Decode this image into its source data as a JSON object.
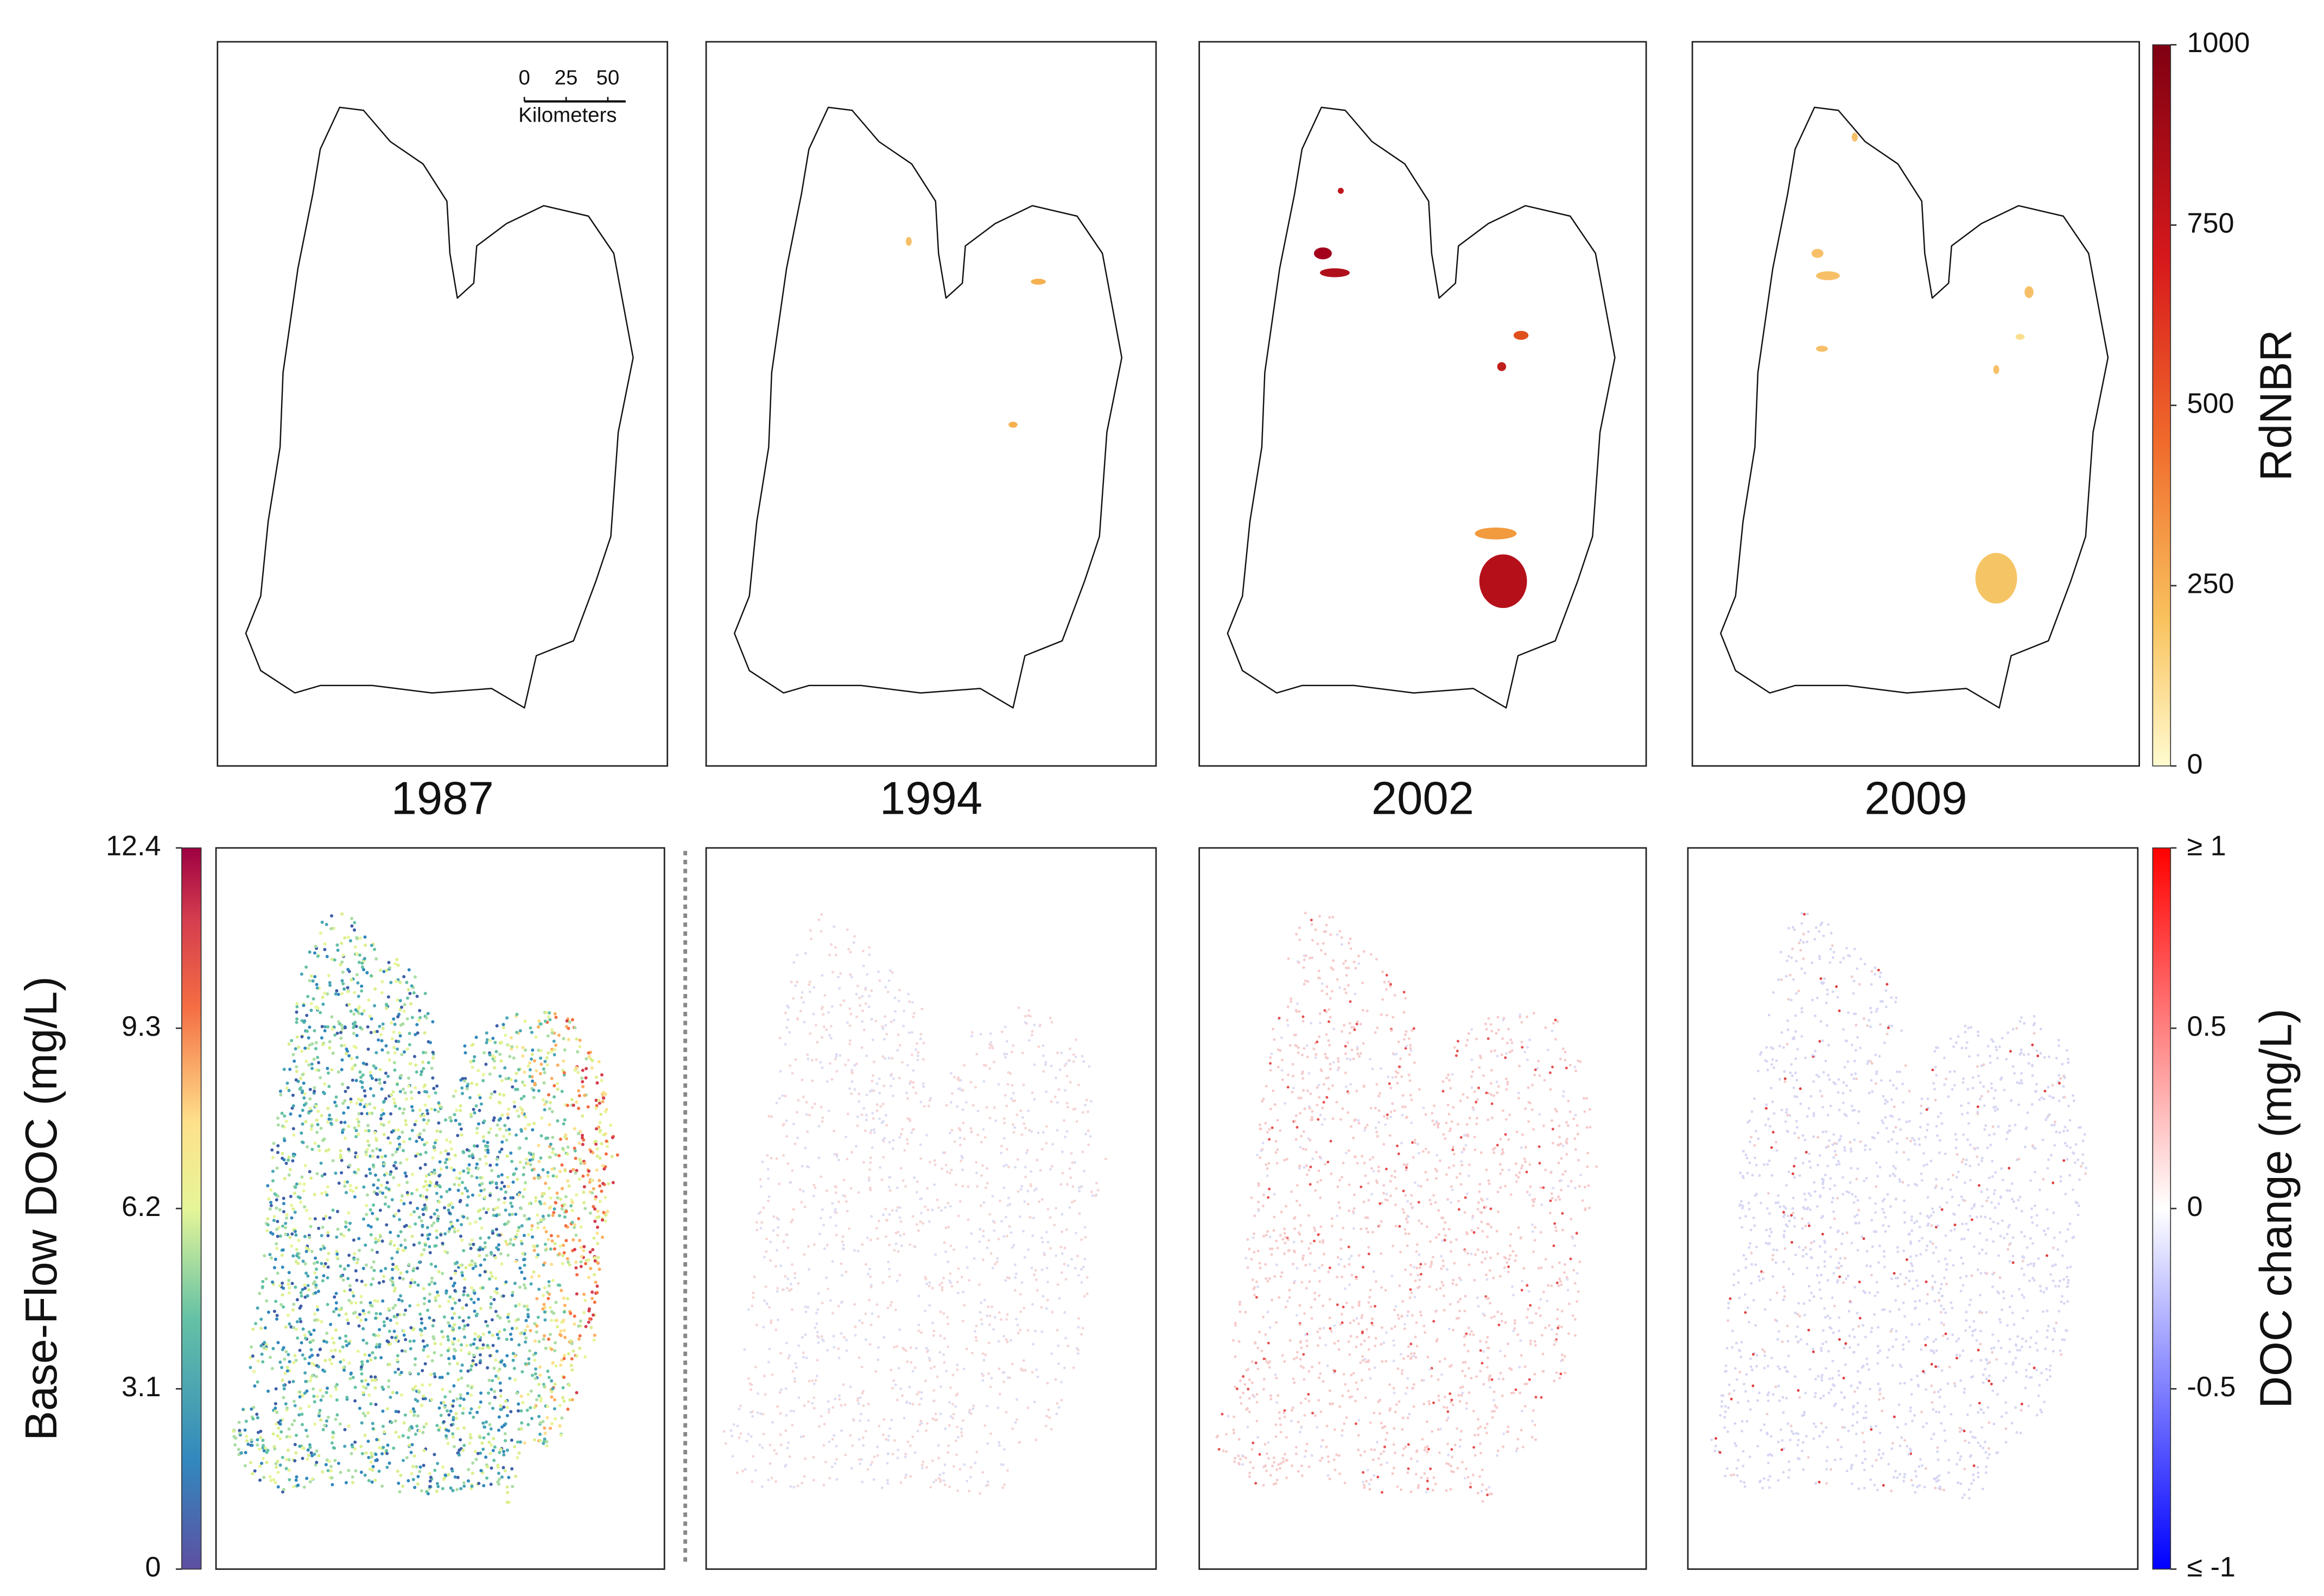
{
  "scale_bar": {
    "ticks": [
      0,
      25,
      50
    ],
    "unit": "Kilometers"
  },
  "years": [
    "1987",
    "1994",
    "2002",
    "2009"
  ],
  "rdnbr_colorbar": {
    "label": "RdNBR",
    "lim": [
      0,
      1000
    ],
    "ticks": [
      0,
      250,
      500,
      750,
      1000
    ]
  },
  "doc_colorbar": {
    "label": "Base-Flow DOC (mg/L)",
    "lim": [
      0,
      12.4
    ],
    "ticks": [
      0,
      3.1,
      6.2,
      9.3,
      12.4
    ]
  },
  "change_colorbar": {
    "label": "DOC change (mg/L)",
    "lim": [
      -1,
      1
    ],
    "ticks": [
      {
        "value": -1,
        "label": "≤ -1"
      },
      -0.5,
      0,
      0.5,
      {
        "value": 1,
        "label": "≥ 1"
      }
    ]
  }
}
